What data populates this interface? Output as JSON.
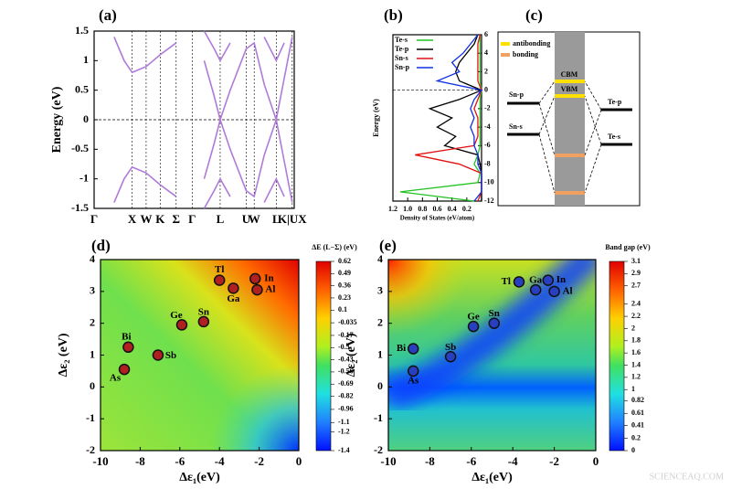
{
  "chart_data": [
    {
      "type": "line",
      "panel_label": "(a)",
      "ylabel": "Energy (eV)",
      "x": [
        0,
        0.05,
        0.1,
        0.15,
        0.19,
        0.26,
        0.33,
        0.41,
        0.49,
        0.55,
        0.6,
        0.63,
        0.68,
        0.76,
        0.8,
        0.85,
        0.91,
        0.95,
        0.99
      ],
      "series": [
        {
          "color": "#b07ad8",
          "values": [
            null,
            null,
            1.4,
            1.0,
            0.8,
            0.9,
            1.1,
            1.3,
            null,
            1.0,
            0.4,
            0.0,
            0.5,
            1.2,
            1.3,
            0.6,
            0.0,
            0.7,
            1.4
          ]
        },
        {
          "color": "#b07ad8",
          "values": [
            null,
            null,
            -1.4,
            -1.0,
            -0.8,
            -0.9,
            -1.1,
            -1.3,
            null,
            -1.0,
            -0.4,
            0.0,
            -0.5,
            -1.2,
            -1.3,
            -0.6,
            0.0,
            -0.7,
            -1.4
          ]
        },
        {
          "color": "#b07ad8",
          "values": [
            null,
            null,
            null,
            null,
            null,
            null,
            null,
            null,
            null,
            1.5,
            1.2,
            1.0,
            1.3,
            null,
            null,
            1.4,
            1.0,
            1.3,
            null
          ]
        },
        {
          "color": "#b07ad8",
          "values": [
            null,
            null,
            null,
            null,
            null,
            null,
            null,
            null,
            null,
            -1.5,
            -1.2,
            -1.0,
            -1.3,
            null,
            null,
            -1.4,
            -1.0,
            -1.3,
            null
          ]
        }
      ],
      "xlim": [
        0,
        1
      ],
      "xticks": [
        {
          "value": 0,
          "label": "Γ"
        },
        {
          "value": 0.19,
          "label": "X"
        },
        {
          "value": 0.26,
          "label": "W"
        },
        {
          "value": 0.33,
          "label": "K"
        },
        {
          "value": 0.41,
          "label": "Σ"
        },
        {
          "value": 0.49,
          "label": "Γ"
        },
        {
          "value": 0.63,
          "label": "L"
        },
        {
          "value": 0.76,
          "label": "U"
        },
        {
          "value": 0.8,
          "label": "W"
        },
        {
          "value": 0.91,
          "label": "L"
        },
        {
          "value": 0.99,
          "label": "K|UX"
        }
      ],
      "ylim": [
        -1.5,
        1.5
      ],
      "yticks": [
        -1.5,
        -1,
        -0.5,
        0,
        0.5,
        1,
        1.5
      ],
      "grid": true
    },
    {
      "type": "dos",
      "panel_label": "(b)",
      "ylabel": "Energy (eV)",
      "xlabel": "Density of States (eV/atom)",
      "y": [
        -12,
        -11,
        -10,
        -9,
        -8,
        -7,
        -6,
        -5,
        -4,
        -3,
        -2,
        -1,
        0,
        1,
        2,
        3,
        4,
        5,
        6
      ],
      "series": [
        {
          "name": "Te-s",
          "color": "#22c322",
          "values": [
            0.1,
            1.1,
            0.05,
            0.02,
            0.1,
            0.05,
            0.02,
            0.02,
            0.02,
            0.02,
            0.02,
            0.02,
            0,
            0.02,
            0.02,
            0.02,
            0.02,
            0.02,
            0.02
          ]
        },
        {
          "name": "Te-p",
          "color": "#000000",
          "values": [
            0,
            0,
            0,
            0,
            0.02,
            0.05,
            0.5,
            0.35,
            0.6,
            0.4,
            0.7,
            0.3,
            0,
            0.3,
            0.35,
            0.3,
            0.2,
            0.1,
            0.05
          ]
        },
        {
          "name": "Sn-s",
          "color": "#e01010",
          "values": [
            0.05,
            0,
            0,
            0,
            0.3,
            0.9,
            0.1,
            0.05,
            0.05,
            0.05,
            0.1,
            0.05,
            0,
            0.05,
            0.05,
            0.05,
            0.05,
            0.05,
            0.02
          ]
        },
        {
          "name": "Sn-p",
          "color": "#1030e0",
          "values": [
            0.1,
            0,
            0,
            0,
            0.05,
            0.05,
            0.1,
            0.1,
            0.15,
            0.1,
            0.15,
            0.1,
            0,
            0.6,
            0.3,
            0.4,
            0.25,
            0.15,
            0.05
          ]
        }
      ],
      "xlim": [
        1.2,
        0
      ],
      "xticks": [
        {
          "value": 1.2,
          "label": "1.2"
        },
        {
          "value": 1,
          "label": "1.0"
        },
        0.8,
        0.6,
        0.4,
        0.2
      ],
      "ylim": [
        -12,
        6
      ],
      "yticks": [
        -12,
        -10,
        -8,
        -6,
        -4,
        -2,
        0,
        2,
        4,
        6
      ],
      "ytick_side": "right",
      "legend": "upper left"
    },
    {
      "type": "scatter",
      "panel_label": "(d)",
      "xlabel": "Δε₁(eV)",
      "ylabel": "Δε₂ (eV)",
      "color": "#b02020",
      "point_labels": [
        "Tl",
        "In",
        "Ga",
        "Al",
        "Ge",
        "Sn",
        "Bi",
        "Sb",
        "As"
      ],
      "x": [
        -4,
        -2.2,
        -3.3,
        -2.1,
        -5.9,
        -4.8,
        -8.6,
        -7.1,
        -8.8
      ],
      "values": [
        3.35,
        3.4,
        3.1,
        3.05,
        1.95,
        2.05,
        1.25,
        1.0,
        0.55
      ],
      "xlim": [
        -10,
        0
      ],
      "xticks": [
        -10,
        -8,
        -6,
        -4,
        -2,
        0
      ],
      "ylim": [
        -2,
        4
      ],
      "yticks": [
        -2,
        -1,
        0,
        1,
        2,
        3,
        4
      ],
      "colorbar": {
        "title": "ΔE (L−Σ) (eV)",
        "lim": [
          -1.4,
          0.62
        ],
        "ticks": [
          0.62,
          0.49,
          0.36,
          0.23,
          0.1,
          -0.035,
          -0.17,
          -0.3,
          -0.43,
          -0.56,
          -0.69,
          -0.82,
          -0.96,
          -1.1,
          -1.2,
          -1.4
        ]
      }
    },
    {
      "type": "scatter",
      "panel_label": "(e)",
      "xlabel": "Δε₁(eV)",
      "ylabel": "Δε₂ (eV)",
      "color": "#2840c0",
      "point_labels": [
        "Tl",
        "In",
        "Ga",
        "Al",
        "Ge",
        "Sn",
        "Bi",
        "Sb",
        "As"
      ],
      "x": [
        -3.7,
        -2.3,
        -2.9,
        -2,
        -5.9,
        -4.9,
        -8.8,
        -7,
        -8.8
      ],
      "values": [
        3.3,
        3.35,
        3.05,
        3.0,
        1.9,
        2.0,
        1.2,
        0.95,
        0.5
      ],
      "xlim": [
        -10,
        0
      ],
      "xticks": [
        -10,
        -8,
        -6,
        -4,
        -2,
        0
      ],
      "ylim": [
        -2,
        4
      ],
      "yticks": [
        -2,
        -1,
        0,
        1,
        2,
        3,
        4
      ],
      "colorbar": {
        "title": "Band gap (eV)",
        "lim": [
          0,
          3.1
        ],
        "ticks": [
          3.1,
          2.9,
          2.7,
          2.4,
          2.2,
          2,
          1.8,
          1.6,
          1.4,
          1.2,
          1,
          0.82,
          0.61,
          0.41,
          0.2,
          0
        ]
      }
    }
  ],
  "diagram": {
    "panel_label": "(c)",
    "legend": [
      "antibonding",
      "bonding"
    ],
    "levels": [
      "CBM",
      "VBM"
    ],
    "left": [
      "Sn-p",
      "Sn-s"
    ],
    "right": [
      "Te-p",
      "Te-s"
    ]
  },
  "watermark": "SCIENCEAQ.COM"
}
